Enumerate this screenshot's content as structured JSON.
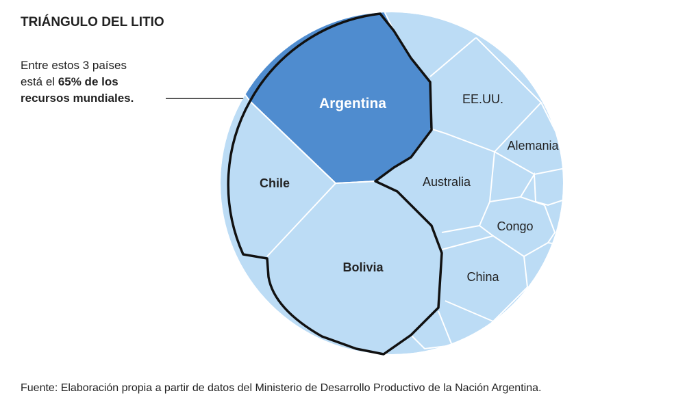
{
  "title": "TRIÁNGULO DEL LITIO",
  "annotation": [
    "Entre estos 3 países",
    "está el ",
    "65% de los",
    "recursos mundiales."
  ],
  "nodes": [
    {
      "label": "Argentina"
    },
    {
      "label": "Chile"
    },
    {
      "label": "Bolivia"
    },
    {
      "label": "EE.UU."
    },
    {
      "label": "Alemania"
    },
    {
      "label": "Australia"
    },
    {
      "label": "Congo"
    },
    {
      "label": "China"
    }
  ],
  "source": "Fuente: Elaboración propia a partir de datos del Ministerio de Desarrollo Productivo de la Nación Argentina."
}
